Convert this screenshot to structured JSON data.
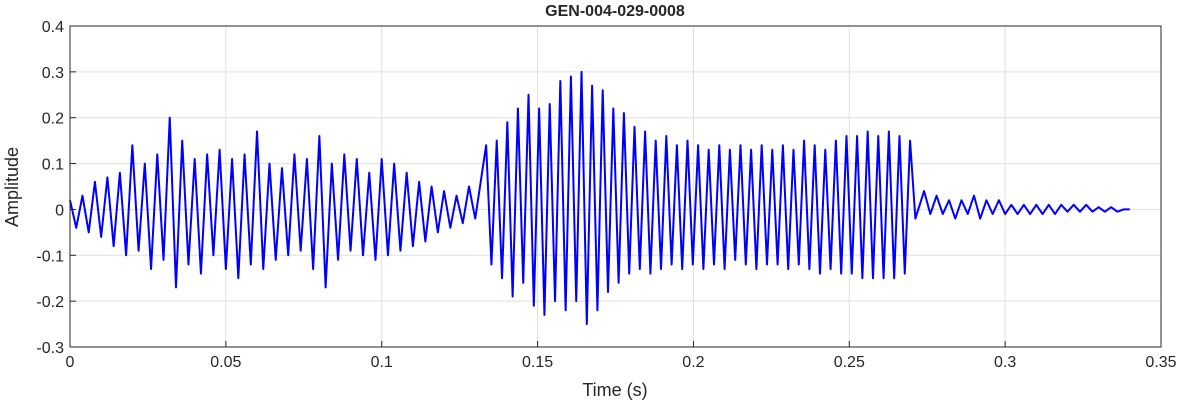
{
  "chart_data": {
    "type": "line",
    "title": "GEN-004-029-0008",
    "xlabel": "Time (s)",
    "ylabel": "Amplitude",
    "color": "#0000ff",
    "grid": true,
    "xlim": [
      0,
      0.35
    ],
    "xticks": [
      0,
      0.05,
      0.1,
      0.15,
      0.2,
      0.25,
      0.3,
      0.35
    ],
    "ylim": [
      -0.3,
      0.4
    ],
    "yticks": [
      -0.3,
      -0.2,
      -0.1,
      0,
      0.1,
      0.2,
      0.3,
      0.4
    ],
    "x": [
      0,
      0.002,
      0.004,
      0.006,
      0.008,
      0.01,
      0.012,
      0.014,
      0.016,
      0.018,
      0.02,
      0.022,
      0.024,
      0.026,
      0.028,
      0.03,
      0.032,
      0.034,
      0.036,
      0.038,
      0.04,
      0.042,
      0.044,
      0.046,
      0.048,
      0.05,
      0.052,
      0.054,
      0.056,
      0.058,
      0.06,
      0.062,
      0.064,
      0.066,
      0.068,
      0.07,
      0.072,
      0.074,
      0.076,
      0.078,
      0.08,
      0.082,
      0.084,
      0.086,
      0.088,
      0.09,
      0.092,
      0.094,
      0.096,
      0.098,
      0.1,
      0.102,
      0.104,
      0.106,
      0.108,
      0.11,
      0.112,
      0.114,
      0.116,
      0.118,
      0.12,
      0.122,
      0.124,
      0.126,
      0.128,
      0.13,
      0.1335,
      0.1352,
      0.1369,
      0.1386,
      0.1403,
      0.142,
      0.1437,
      0.1454,
      0.1471,
      0.1488,
      0.1505,
      0.1522,
      0.1539,
      0.1556,
      0.1573,
      0.159,
      0.1607,
      0.1624,
      0.1641,
      0.1658,
      0.1675,
      0.1692,
      0.1709,
      0.1726,
      0.1743,
      0.176,
      0.1777,
      0.1794,
      0.1811,
      0.1828,
      0.1845,
      0.1862,
      0.1879,
      0.1896,
      0.1913,
      0.193,
      0.1947,
      0.1964,
      0.1981,
      0.1998,
      0.2015,
      0.2032,
      0.2049,
      0.2066,
      0.2083,
      0.21,
      0.2117,
      0.2134,
      0.2151,
      0.2168,
      0.2185,
      0.2202,
      0.2219,
      0.2236,
      0.2253,
      0.227,
      0.2287,
      0.2304,
      0.2321,
      0.2338,
      0.2355,
      0.2372,
      0.2389,
      0.2406,
      0.2423,
      0.244,
      0.2457,
      0.2474,
      0.2491,
      0.2508,
      0.2525,
      0.2542,
      0.2559,
      0.2576,
      0.2593,
      0.261,
      0.2627,
      0.2644,
      0.2661,
      0.2678,
      0.2695,
      0.2712,
      0.274,
      0.276,
      0.278,
      0.28,
      0.282,
      0.284,
      0.286,
      0.288,
      0.29,
      0.292,
      0.294,
      0.296,
      0.298,
      0.3,
      0.302,
      0.304,
      0.306,
      0.308,
      0.31,
      0.312,
      0.314,
      0.316,
      0.318,
      0.32,
      0.322,
      0.324,
      0.326,
      0.328,
      0.33,
      0.332,
      0.334,
      0.336,
      0.338,
      0.34
    ],
    "values": [
      0.02,
      -0.04,
      0.03,
      -0.05,
      0.06,
      -0.06,
      0.07,
      -0.08,
      0.08,
      -0.1,
      0.14,
      -0.09,
      0.1,
      -0.13,
      0.12,
      -0.11,
      0.2,
      -0.17,
      0.15,
      -0.12,
      0.11,
      -0.14,
      0.12,
      -0.1,
      0.13,
      -0.13,
      0.11,
      -0.15,
      0.12,
      -0.12,
      0.17,
      -0.13,
      0.1,
      -0.11,
      0.09,
      -0.1,
      0.12,
      -0.09,
      0.11,
      -0.13,
      0.16,
      -0.17,
      0.1,
      -0.11,
      0.12,
      -0.09,
      0.11,
      -0.1,
      0.08,
      -0.11,
      0.11,
      -0.1,
      0.1,
      -0.09,
      0.08,
      -0.08,
      0.06,
      -0.07,
      0.05,
      -0.05,
      0.04,
      -0.04,
      0.03,
      -0.03,
      0.05,
      -0.02,
      0.14,
      -0.12,
      0.15,
      -0.15,
      0.19,
      -0.19,
      0.22,
      -0.16,
      0.25,
      -0.21,
      0.22,
      -0.23,
      0.23,
      -0.2,
      0.28,
      -0.22,
      0.29,
      -0.2,
      0.3,
      -0.25,
      0.27,
      -0.22,
      0.26,
      -0.18,
      0.22,
      -0.16,
      0.21,
      -0.14,
      0.18,
      -0.13,
      0.17,
      -0.14,
      0.15,
      -0.13,
      0.16,
      -0.12,
      0.14,
      -0.13,
      0.15,
      -0.12,
      0.14,
      -0.13,
      0.13,
      -0.12,
      0.14,
      -0.13,
      0.13,
      -0.11,
      0.14,
      -0.12,
      0.13,
      -0.13,
      0.14,
      -0.12,
      0.13,
      -0.12,
      0.14,
      -0.13,
      0.13,
      -0.12,
      0.15,
      -0.13,
      0.14,
      -0.14,
      0.13,
      -0.13,
      0.15,
      -0.14,
      0.16,
      -0.14,
      0.16,
      -0.15,
      0.17,
      -0.15,
      0.16,
      -0.15,
      0.17,
      -0.15,
      0.16,
      -0.14,
      0.15,
      -0.02,
      0.04,
      -0.01,
      0.03,
      -0.01,
      0.02,
      -0.02,
      0.02,
      -0.01,
      0.03,
      -0.02,
      0.02,
      -0.01,
      0.02,
      -0.01,
      0.01,
      -0.01,
      0.01,
      -0.01,
      0.01,
      -0.01,
      0.01,
      -0.01,
      0.01,
      -0.005,
      0.01,
      -0.005,
      0.01,
      -0.005,
      0.005,
      -0.005,
      0.005,
      -0.005,
      0,
      0
    ]
  }
}
